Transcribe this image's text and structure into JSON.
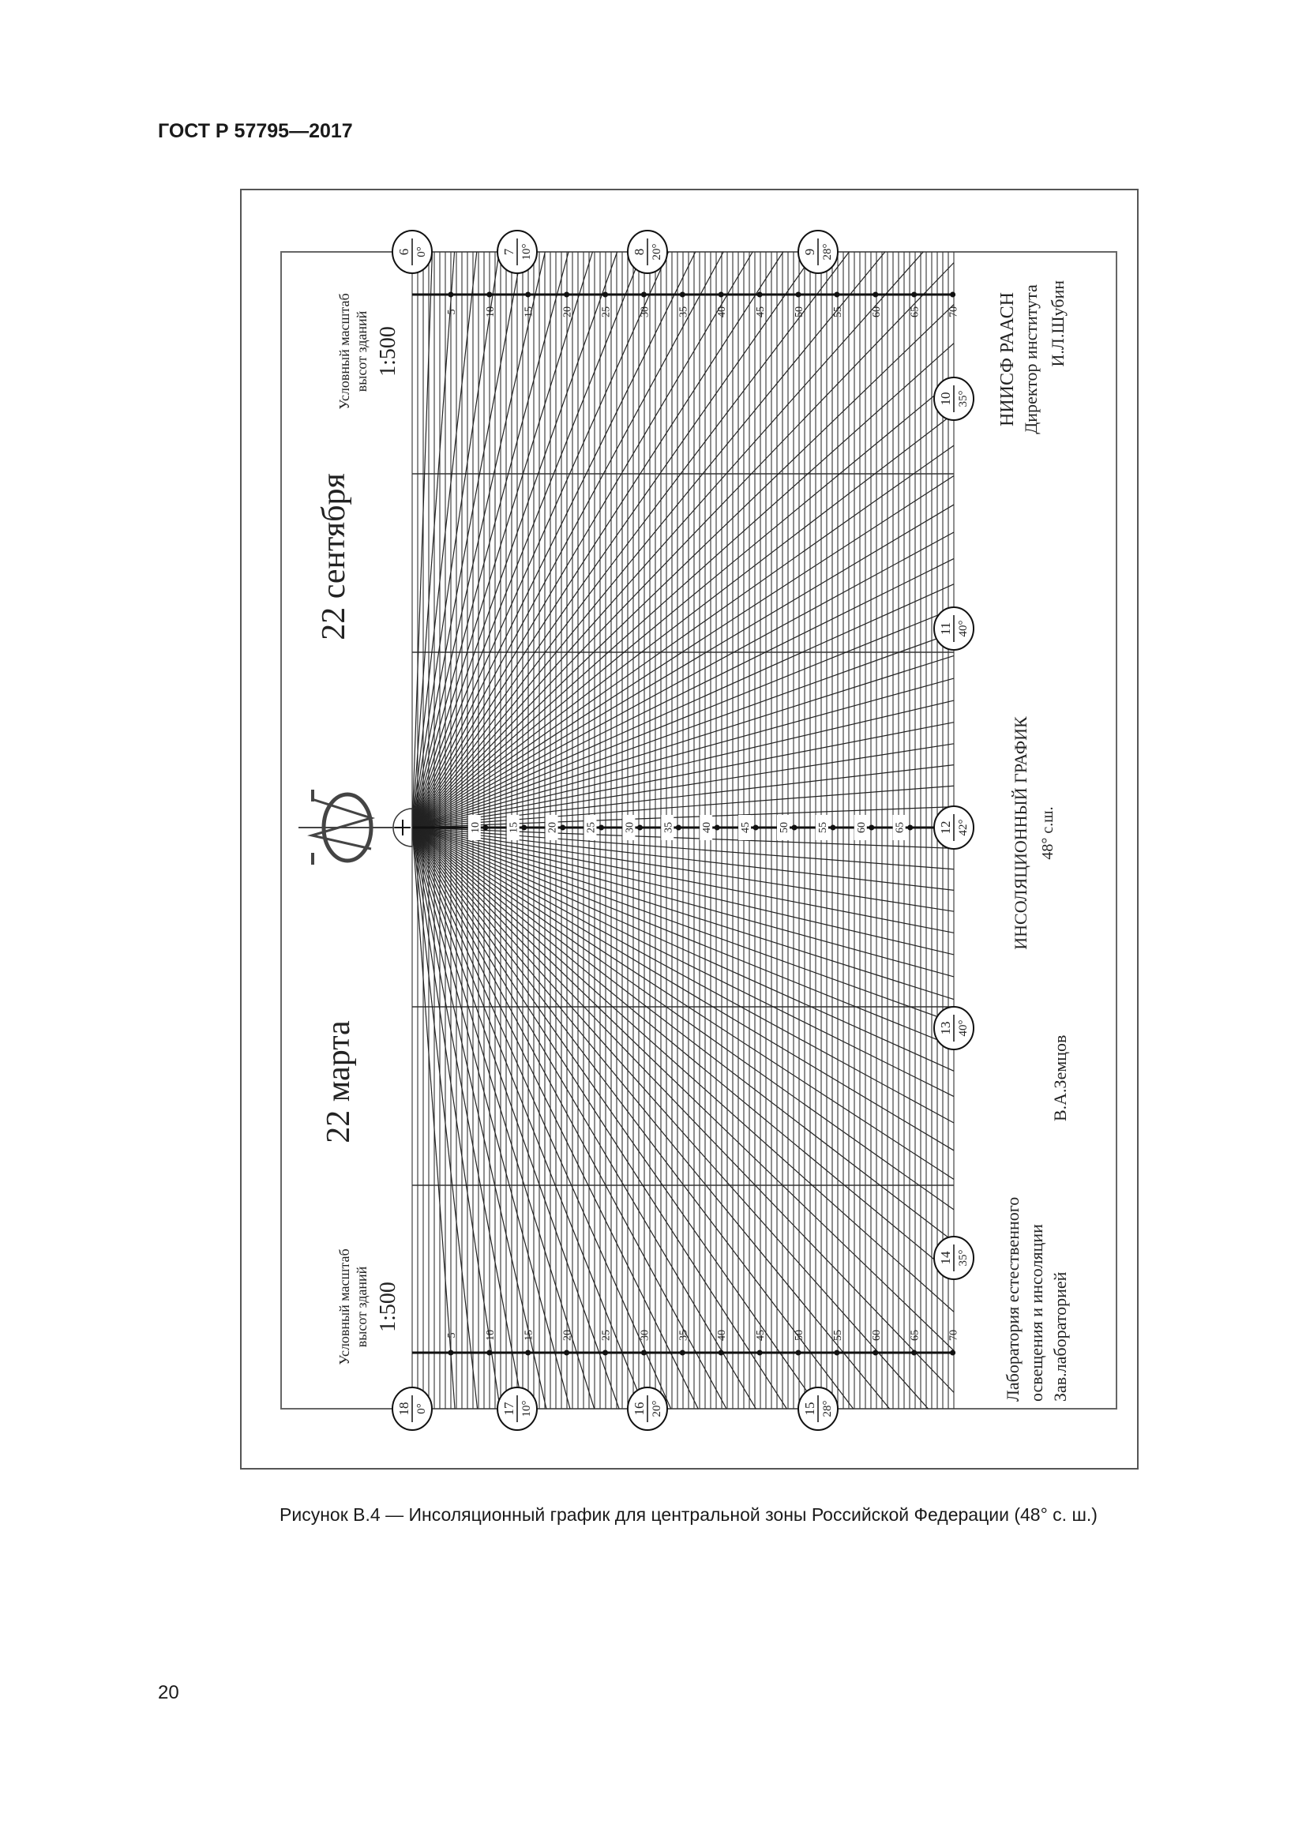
{
  "header": {
    "standard": "ГОСТ Р 57795—2017"
  },
  "figure": {
    "caption": "Рисунок В.4 — Инсоляционный график для центральной зоны Российской Федерации (48° с. ш.)",
    "date_top": "22 сентября",
    "date_bottom": "22 марта",
    "scale_top": {
      "line1": "Условный масштаб",
      "line2": "высот зданий",
      "ratio": "1:500"
    },
    "scale_bottom": {
      "line1": "Условный масштаб",
      "line2": "высот зданий",
      "ratio": "1:500"
    },
    "institute": {
      "line1": "НИИСФ РААСН",
      "line2": "Директор института",
      "line3": "И.Л.Шубин"
    },
    "title": {
      "line1": "ИНСОЛЯЦИОННЫЙ ГРАФИК",
      "line2": "48° с.ш."
    },
    "lab": {
      "line1": "Лаборатория естественного",
      "line2": "освещения и инсоляции",
      "line3": "Зав.лабораторией",
      "signer": "В.А.Земцов"
    },
    "edge_scale_values": [
      "5",
      "10",
      "15",
      "20",
      "25",
      "30",
      "35",
      "40",
      "45",
      "50",
      "55",
      "60",
      "65",
      "70"
    ],
    "center_scale_values": [
      "10",
      "15",
      "20",
      "25",
      "30",
      "35",
      "40",
      "45",
      "50",
      "55",
      "60",
      "65"
    ],
    "time_markers_top": [
      {
        "hour": "6",
        "angle": "0°"
      },
      {
        "hour": "7",
        "angle": "10°"
      },
      {
        "hour": "8",
        "angle": "20°"
      },
      {
        "hour": "9",
        "angle": "28°"
      }
    ],
    "time_markers_right": [
      {
        "hour": "10",
        "angle": "35°"
      },
      {
        "hour": "11",
        "angle": "40°"
      },
      {
        "hour": "12",
        "angle": "42°"
      },
      {
        "hour": "13",
        "angle": "40°"
      },
      {
        "hour": "14",
        "angle": "35°"
      }
    ],
    "time_markers_bottom": [
      {
        "hour": "18",
        "angle": "0°"
      },
      {
        "hour": "17",
        "angle": "10°"
      },
      {
        "hour": "16",
        "angle": "20°"
      },
      {
        "hour": "15",
        "angle": "28°"
      }
    ]
  },
  "page_number": "20"
}
